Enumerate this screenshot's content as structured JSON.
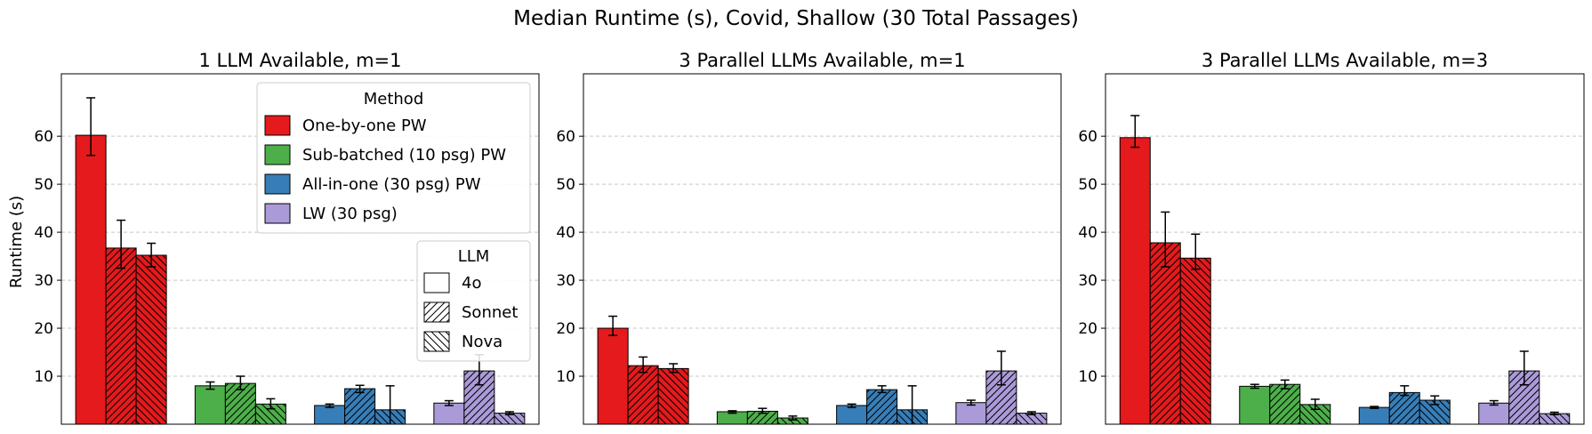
{
  "figure_title": "Median Runtime (s), Covid, Shallow (30 Total Passages)",
  "ylabel": "Runtime (s)",
  "legend_method": {
    "title": "Method",
    "entries": [
      {
        "label": "One-by-one PW",
        "color": "#e41a1c"
      },
      {
        "label": "Sub-batched (10 psg) PW",
        "color": "#4daf4a"
      },
      {
        "label": "All-in-one (30 psg) PW",
        "color": "#377eb8"
      },
      {
        "label": "LW (30 psg)",
        "color": "#ab9ad8"
      }
    ]
  },
  "legend_llm": {
    "title": "LLM",
    "entries": [
      {
        "label": "4o",
        "hatch": "none"
      },
      {
        "label": "Sonnet",
        "hatch": "forward"
      },
      {
        "label": "Nova",
        "hatch": "back"
      }
    ]
  },
  "chart_data": [
    {
      "type": "bar",
      "title": "1 LLM Available, m=1",
      "ylim": [
        0,
        73
      ],
      "yticks": [
        10,
        20,
        30,
        40,
        50,
        60
      ],
      "grid": "y-dashed",
      "methods": [
        "One-by-one PW",
        "Sub-batched (10 psg) PW",
        "All-in-one (30 psg) PW",
        "LW (30 psg)"
      ],
      "llms": [
        "4o",
        "Sonnet",
        "Nova"
      ],
      "values": [
        [
          60.2,
          36.7,
          35.2
        ],
        [
          8.0,
          8.5,
          4.2
        ],
        [
          3.9,
          7.4,
          3.0
        ],
        [
          4.4,
          11.1,
          2.3
        ]
      ],
      "err_low": [
        [
          56.0,
          32.5,
          32.8
        ],
        [
          7.3,
          7.2,
          3.2
        ],
        [
          3.5,
          6.6,
          0.0
        ],
        [
          3.9,
          8.2,
          2.0
        ]
      ],
      "err_high": [
        [
          68.0,
          42.5,
          37.7
        ],
        [
          8.8,
          10.0,
          5.3
        ],
        [
          4.2,
          8.1,
          8.0
        ],
        [
          4.9,
          14.5,
          2.6
        ]
      ],
      "legend": "top-right"
    },
    {
      "type": "bar",
      "title": "3 Parallel LLMs Available, m=1",
      "ylim": [
        0,
        73
      ],
      "yticks": [
        10,
        20,
        30,
        40,
        50,
        60
      ],
      "grid": "y-dashed",
      "methods": [
        "One-by-one PW",
        "Sub-batched (10 psg) PW",
        "All-in-one (30 psg) PW",
        "LW (30 psg)"
      ],
      "llms": [
        "4o",
        "Sonnet",
        "Nova"
      ],
      "values": [
        [
          20.0,
          12.2,
          11.6
        ],
        [
          2.6,
          2.7,
          1.3
        ],
        [
          3.9,
          7.2,
          3.0
        ],
        [
          4.5,
          11.1,
          2.3
        ]
      ],
      "err_low": [
        [
          18.5,
          10.8,
          10.8
        ],
        [
          2.3,
          2.3,
          0.9
        ],
        [
          3.5,
          6.6,
          0.0
        ],
        [
          4.0,
          8.2,
          2.0
        ]
      ],
      "err_high": [
        [
          22.5,
          14.0,
          12.6
        ],
        [
          2.8,
          3.3,
          1.7
        ],
        [
          4.2,
          8.0,
          8.0
        ],
        [
          5.0,
          15.2,
          2.6
        ]
      ]
    },
    {
      "type": "bar",
      "title": "3 Parallel LLMs Available, m=3",
      "ylim": [
        0,
        73
      ],
      "yticks": [
        10,
        20,
        30,
        40,
        50,
        60
      ],
      "grid": "y-dashed",
      "methods": [
        "One-by-one PW",
        "Sub-batched (10 psg) PW",
        "All-in-one (30 psg) PW",
        "LW (30 psg)"
      ],
      "llms": [
        "4o",
        "Sonnet",
        "Nova"
      ],
      "values": [
        [
          59.7,
          37.8,
          34.6
        ],
        [
          7.9,
          8.3,
          4.1
        ],
        [
          3.5,
          6.6,
          5.0
        ],
        [
          4.4,
          11.1,
          2.2
        ]
      ],
      "err_low": [
        [
          57.7,
          32.8,
          32.3
        ],
        [
          7.5,
          7.4,
          3.1
        ],
        [
          3.3,
          6.0,
          4.1
        ],
        [
          4.0,
          8.2,
          2.0
        ]
      ],
      "err_high": [
        [
          64.3,
          44.2,
          39.6
        ],
        [
          8.3,
          9.2,
          5.2
        ],
        [
          3.7,
          8.0,
          5.9
        ],
        [
          4.9,
          15.2,
          2.5
        ]
      ]
    }
  ]
}
